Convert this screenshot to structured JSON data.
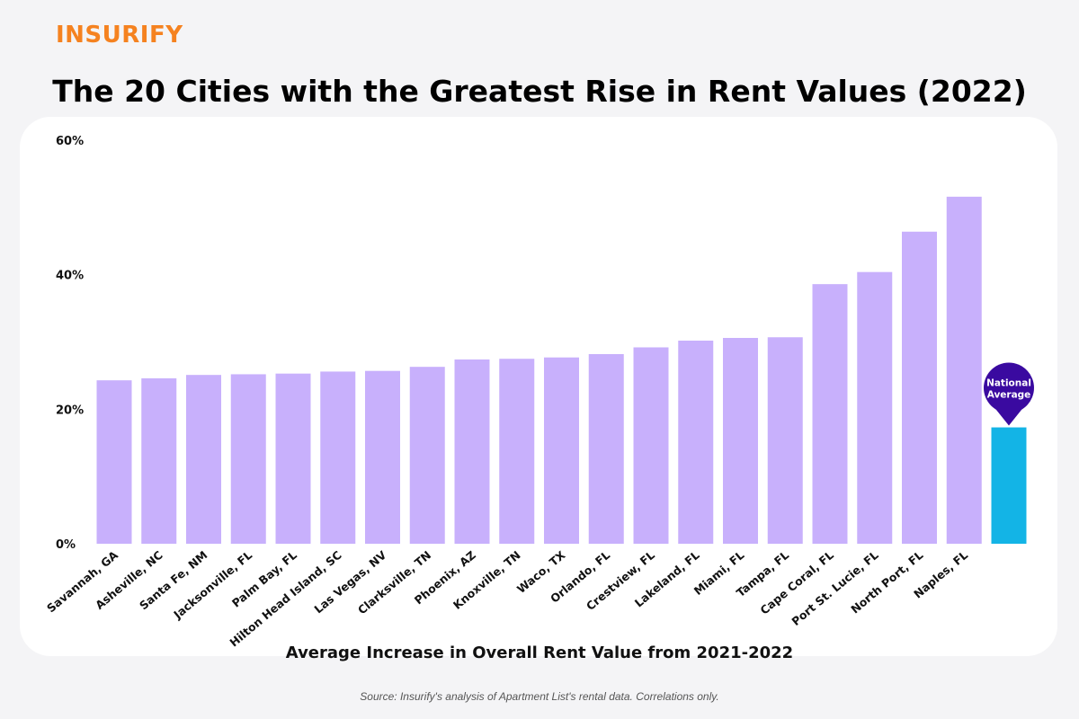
{
  "brand": {
    "name": "INSURIFY",
    "color": "#f58220"
  },
  "title": "The 20 Cities with the Greatest Rise in Rent Values (2022)",
  "source": "Source: Insurify's analysis of Apartment List's rental data. Correlations only.",
  "chart_data": {
    "type": "bar",
    "title": "The 20 Cities with the Greatest Rise in Rent Values (2022)",
    "xlabel": "Average Increase in Overall Rent Value from 2021-2022",
    "ylabel": "",
    "ylim": [
      0,
      60
    ],
    "yticks": [
      0,
      20,
      40,
      60
    ],
    "ytick_labels": [
      "0%",
      "20%",
      "40%",
      "60%"
    ],
    "grid": false,
    "categories": [
      "Savannah, GA",
      "Asheville, NC",
      "Santa Fe, NM",
      "Jacksonville, FL",
      "Palm Bay, FL",
      "Hilton Head Island, SC",
      "Las Vegas, NV",
      "Clarksville, TN",
      "Phoenix, AZ",
      "Knoxville, TN",
      "Waco, TX",
      "Orlando, FL",
      "Crestview, FL",
      "Lakeland, FL",
      "Miami, FL",
      "Tampa, FL",
      "Cape Coral, FL",
      "Port St. Lucie, FL",
      "North Port, FL",
      "Naples, FL"
    ],
    "values": [
      24.3,
      24.6,
      25.1,
      25.2,
      25.3,
      25.6,
      25.7,
      26.3,
      27.4,
      27.5,
      27.7,
      28.2,
      29.2,
      30.2,
      30.6,
      30.7,
      38.6,
      40.4,
      46.4,
      51.6
    ],
    "bar_color": "#c8b0fc",
    "national_average": {
      "label_line1": "National",
      "label_line2": "Average",
      "value": 17.3,
      "color": "#13b4e6",
      "pin_color": "#3a0aa0"
    }
  }
}
